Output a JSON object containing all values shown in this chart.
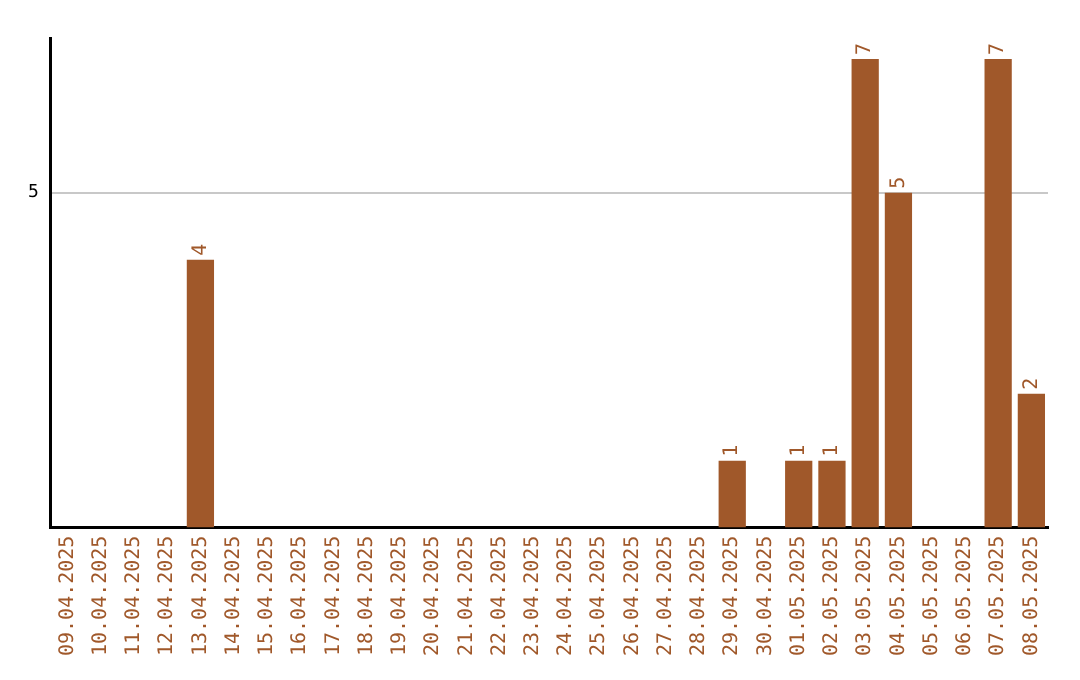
{
  "chart_data": {
    "type": "bar",
    "categories": [
      "09.04.2025",
      "10.04.2025",
      "11.04.2025",
      "12.04.2025",
      "13.04.2025",
      "14.04.2025",
      "15.04.2025",
      "16.04.2025",
      "17.04.2025",
      "18.04.2025",
      "19.04.2025",
      "20.04.2025",
      "21.04.2025",
      "22.04.2025",
      "23.04.2025",
      "24.04.2025",
      "25.04.2025",
      "26.04.2025",
      "27.04.2025",
      "28.04.2025",
      "29.04.2025",
      "30.04.2025",
      "01.05.2025",
      "02.05.2025",
      "03.05.2025",
      "04.05.2025",
      "05.05.2025",
      "06.05.2025",
      "07.05.2025",
      "08.05.2025"
    ],
    "values": [
      null,
      null,
      null,
      null,
      4,
      null,
      null,
      null,
      null,
      null,
      null,
      null,
      null,
      null,
      null,
      null,
      null,
      null,
      null,
      null,
      1,
      null,
      1,
      1,
      7,
      5,
      null,
      null,
      7,
      2
    ],
    "color": "#a0582a",
    "ylim": [
      0,
      7.3
    ],
    "yticks": [
      5
    ],
    "grid": "y",
    "data_labels": true,
    "legend": false
  }
}
